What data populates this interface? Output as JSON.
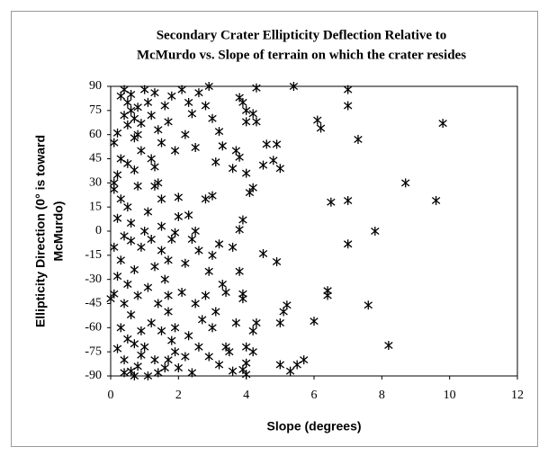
{
  "chart_data": {
    "type": "scatter",
    "title": [
      "Secondary Crater Ellipticity Deflection Relative to",
      "McMurdo vs. Slope of terrain on which the crater resides"
    ],
    "xlabel": "Slope (degrees)",
    "ylabel": [
      "Ellipticity Direction (0° is toward",
      "McMurdo)"
    ],
    "color": "#000000",
    "xlim": [
      0,
      12
    ],
    "xticks": [
      0,
      2,
      4,
      6,
      8,
      10,
      12
    ],
    "ylim": [
      -90,
      90
    ],
    "yticks": [
      -90,
      -75,
      -60,
      -45,
      -30,
      -15,
      0,
      15,
      30,
      45,
      60,
      75,
      90
    ],
    "grid": false,
    "x": [
      5.4,
      7.0,
      7.0,
      9.8,
      6.1,
      6.2,
      7.3,
      4.9,
      4.6,
      5.0,
      4.8,
      4.5,
      4.2,
      4.1,
      4.0,
      8.7,
      9.6,
      7.0,
      6.5,
      7.8,
      7.0,
      4.5,
      4.9,
      6.4,
      6.4,
      7.6,
      5.2,
      5.1,
      5.0,
      6.0,
      8.2,
      5.7,
      5.5,
      5.3,
      5.0,
      4.3,
      4.2,
      4.0,
      4.0,
      4.2,
      3.9,
      4.0,
      4.3,
      3.9,
      4.0,
      4.2,
      4.3,
      4.0,
      3.8,
      3.7,
      3.8,
      3.6,
      3.9,
      3.8,
      3.6,
      3.8,
      3.9,
      3.9,
      3.7,
      3.6,
      3.5,
      0.1,
      0.2,
      0.3,
      0.4,
      0.5,
      0.6,
      0.7,
      0.5,
      0.4,
      0.8,
      0.9,
      0.3,
      0.2,
      0.1,
      0.3,
      0.5,
      0.2,
      0.4,
      0.1,
      0.3,
      0.2,
      0.5,
      0.1,
      0.4,
      0.6,
      0.3,
      0.5,
      0.2,
      0.4,
      0.6,
      0.7,
      0.8,
      0.9,
      0.7,
      0.9,
      0.8,
      0.7,
      0.9,
      0.6,
      0.8,
      0.7,
      0.9,
      0.6,
      0.5,
      0,
      0.1,
      0.6,
      0.4,
      0.8,
      0.7,
      1.0,
      1.1,
      1.2,
      1.3,
      1.4,
      1.5,
      1.6,
      1.7,
      1.8,
      1.9,
      1.2,
      1.4,
      1.3,
      1.5,
      1.1,
      1.0,
      1.2,
      1.5,
      1.7,
      1.8,
      1.9,
      1.3,
      1.6,
      1.1,
      1.4,
      1.7,
      1.2,
      1.5,
      1.8,
      1.0,
      1.3,
      1.6,
      1.9,
      1.1,
      1.4,
      1.7,
      1.9,
      1.5,
      1.3,
      1.7,
      2.1,
      2.3,
      2.4,
      2.2,
      2.5,
      2.6,
      2.8,
      2.9,
      3.0,
      3.2,
      3.1,
      3.3,
      2.0,
      2.3,
      2.0,
      2.8,
      3.0,
      2.4,
      2.6,
      2.2,
      2.9,
      3.2,
      3.3,
      2.1,
      2.5,
      2.7,
      3.0,
      2.3,
      2.6,
      2.9,
      3.2,
      2.0,
      2.4,
      3.4,
      3.1,
      2.8,
      2.2,
      3.4,
      3.0,
      2.5
    ],
    "values": [
      90,
      88,
      78,
      67,
      69,
      64,
      57,
      54,
      54,
      39,
      44,
      41,
      27,
      24,
      36,
      30,
      19,
      19,
      18,
      0,
      -8,
      -14,
      -19,
      -37,
      -40,
      -46,
      -46,
      -50,
      -57,
      -56,
      -71,
      -80,
      -83,
      -87,
      -83,
      -57,
      -62,
      -82,
      -89,
      -75,
      -86,
      -72,
      89,
      80,
      75,
      73,
      68,
      68,
      83,
      50,
      46,
      39,
      7,
      1,
      -10,
      -25,
      -39,
      -42,
      -57,
      -87,
      -75,
      55,
      61,
      84,
      88,
      80,
      75,
      70,
      66,
      72,
      60,
      67,
      45,
      35,
      26,
      20,
      15,
      8,
      -3,
      -10,
      -18,
      -28,
      -33,
      -39,
      -45,
      -52,
      -60,
      -67,
      -73,
      -80,
      -87,
      -90,
      -84,
      -77,
      -70,
      -62,
      -40,
      -24,
      -10,
      5,
      28,
      38,
      50,
      85,
      42,
      -42,
      30,
      -6,
      -88,
      77,
      58,
      88,
      80,
      72,
      86,
      63,
      55,
      78,
      68,
      84,
      50,
      45,
      30,
      28,
      20,
      12,
      0,
      -5,
      -12,
      -18,
      -5,
      -1,
      -22,
      -30,
      -35,
      -45,
      -50,
      -57,
      -62,
      -68,
      -72,
      -80,
      -85,
      -75,
      -90,
      -88,
      -80,
      -60,
      3,
      40,
      -40,
      88,
      80,
      73,
      60,
      52,
      86,
      78,
      90,
      70,
      62,
      43,
      53,
      21,
      10,
      9,
      20,
      22,
      -5,
      -12,
      -20,
      -25,
      -8,
      -33,
      -38,
      -45,
      -55,
      -60,
      -65,
      -72,
      -78,
      -83,
      -85,
      -88,
      -72,
      -50,
      -40,
      -78,
      -38,
      -15,
      0
    ]
  }
}
